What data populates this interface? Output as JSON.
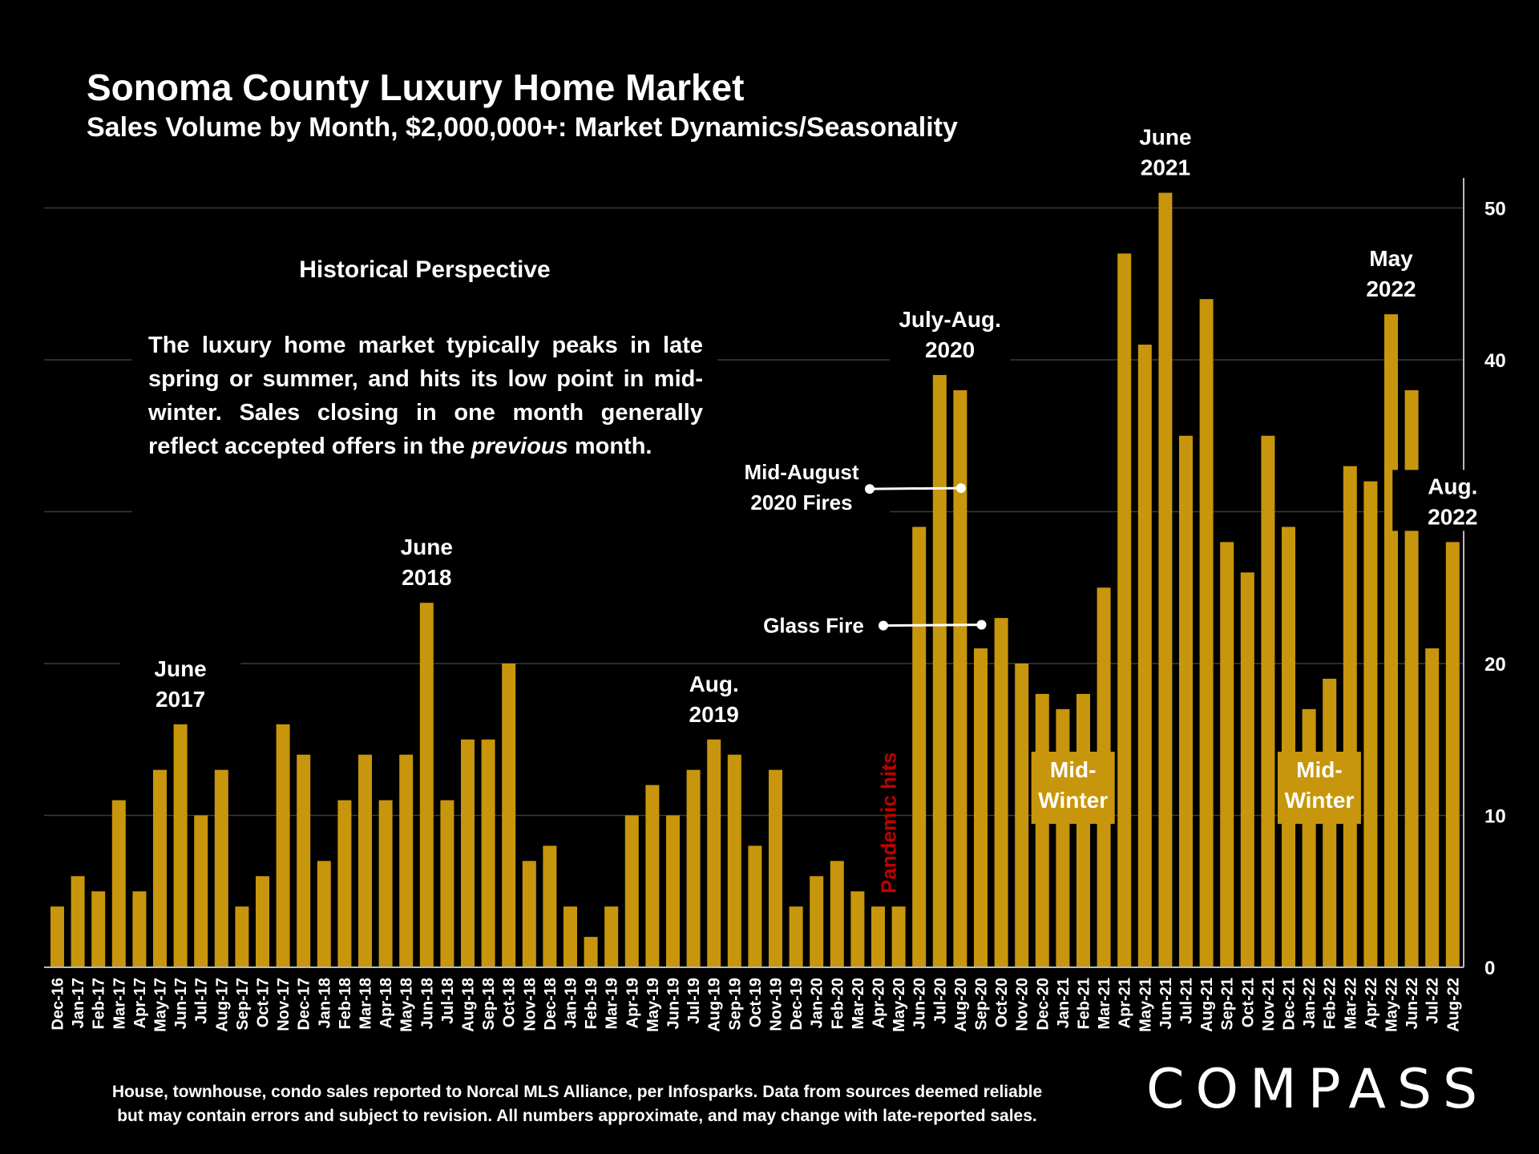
{
  "title": "Sonoma County Luxury Home Market",
  "subtitle": "Sales Volume by Month, $2,000,000+: Market Dynamics/Seasonality",
  "historical": {
    "heading": "Historical Perspective",
    "text_before": "The luxury home market typically peaks in late spring or summer, and hits its low point in mid-winter.  Sales closing in one month generally reflect accepted offers in the ",
    "text_emphasis": "previous",
    "text_after": " month."
  },
  "footnote": {
    "line1": "House, townhouse, condo sales reported to Norcal MLS Alliance, per Infosparks. Data from sources deemed reliable",
    "line2": "but may contain errors and subject to revision. All numbers approximate, and may change with late-reported sales."
  },
  "logo": "COMPASS",
  "colors": {
    "bar": "#c8960c",
    "background": "#000000",
    "pandemic": "#c00000",
    "grid": "#3a3a3a"
  },
  "chart_data": {
    "type": "bar",
    "categories": [
      "Dec-16",
      "Jan-17",
      "Feb-17",
      "Mar-17",
      "Apr-17",
      "May-17",
      "Jun-17",
      "Jul-17",
      "Aug-17",
      "Sep-17",
      "Oct-17",
      "Nov-17",
      "Dec-17",
      "Jan-18",
      "Feb-18",
      "Mar-18",
      "Apr-18",
      "May-18",
      "Jun-18",
      "Jul-18",
      "Aug-18",
      "Sep-18",
      "Oct-18",
      "Nov-18",
      "Dec-18",
      "Jan-19",
      "Feb-19",
      "Mar-19",
      "Apr-19",
      "May-19",
      "Jun-19",
      "Jul-19",
      "Aug-19",
      "Sep-19",
      "Oct-19",
      "Nov-19",
      "Dec-19",
      "Jan-20",
      "Feb-20",
      "Mar-20",
      "Apr-20",
      "May-20",
      "Jun-20",
      "Jul-20",
      "Aug-20",
      "Sep-20",
      "Oct-20",
      "Nov-20",
      "Dec-20",
      "Jan-21",
      "Feb-21",
      "Mar-21",
      "Apr-21",
      "May-21",
      "Jun-21",
      "Jul-21",
      "Aug-21",
      "Sep-21",
      "Oct-21",
      "Nov-21",
      "Dec-21",
      "Jan-22",
      "Feb-22",
      "Mar-22",
      "Apr-22",
      "May-22",
      "Jun-22",
      "Jul-22",
      "Aug-22"
    ],
    "values": [
      4,
      6,
      5,
      11,
      5,
      13,
      16,
      10,
      13,
      4,
      6,
      16,
      14,
      7,
      11,
      14,
      11,
      14,
      24,
      11,
      15,
      15,
      20,
      7,
      8,
      4,
      2,
      4,
      10,
      12,
      10,
      13,
      15,
      14,
      8,
      13,
      4,
      6,
      7,
      5,
      4,
      4,
      29,
      39,
      38,
      21,
      23,
      20,
      18,
      17,
      18,
      25,
      47,
      41,
      51,
      35,
      44,
      28,
      26,
      35,
      29,
      17,
      19,
      33,
      32,
      43,
      38,
      21,
      28
    ],
    "ylim": [
      0,
      52
    ],
    "yticks": [
      0,
      10,
      20,
      30,
      40,
      50
    ],
    "axis_side": "right",
    "gridlines": true,
    "annotations": [
      {
        "id": "jun2017",
        "index": 6,
        "lines": [
          "June",
          "2017"
        ]
      },
      {
        "id": "jun2018",
        "index": 18,
        "lines": [
          "June",
          "2018"
        ]
      },
      {
        "id": "aug2019",
        "index": 32,
        "lines": [
          "Aug.",
          "2019"
        ]
      },
      {
        "id": "julaug2020",
        "index": 43.5,
        "lines": [
          "July-Aug.",
          "2020"
        ]
      },
      {
        "id": "jun2021",
        "index": 54,
        "lines": [
          "June",
          "2021"
        ]
      },
      {
        "id": "may2022",
        "index": 65,
        "lines": [
          "May",
          "2022"
        ]
      },
      {
        "id": "aug2022",
        "index": 68,
        "lines": [
          "Aug.",
          "2022"
        ]
      }
    ],
    "callouts": [
      {
        "id": "fires",
        "lines": [
          "Mid-August",
          "2020 Fires"
        ],
        "target_index": 44,
        "value": 31.5
      },
      {
        "id": "glass",
        "lines": [
          "Glass Fire"
        ],
        "target_index": 45,
        "value": 22.5
      }
    ],
    "pandemic_label": {
      "text": "Pandemic hits",
      "index": 40.5
    },
    "midwinter_boxes": [
      {
        "id": "mw1",
        "lines": [
          "Mid-",
          "Winter"
        ],
        "index": 49.5
      },
      {
        "id": "mw2",
        "lines": [
          "Mid-",
          "Winter"
        ],
        "index": 61.5
      }
    ]
  }
}
